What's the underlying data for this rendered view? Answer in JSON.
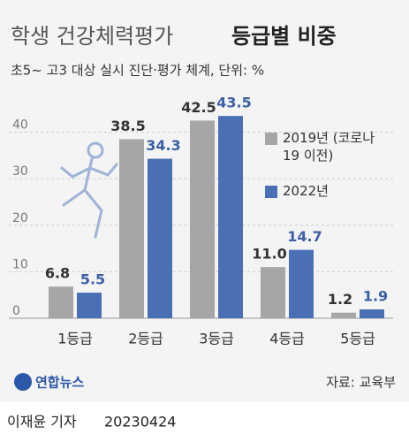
{
  "chart_data": {
    "type": "bar",
    "title": "학생 건강체력평가",
    "title_emphasis": "등급별 비중",
    "subtitle": "초5~ 고3 대상 실시 진단·평가 체계, 단위: %",
    "categories": [
      "1등급",
      "2등급",
      "3등급",
      "4등급",
      "5등급"
    ],
    "series": [
      {
        "name": "2019년 (코로나19 이전)",
        "color": "#a6a6a6",
        "values": [
          6.8,
          38.5,
          42.5,
          11.0,
          1.2
        ],
        "value_labels": [
          "6.8",
          "38.5",
          "42.5",
          "11.0",
          "1.2"
        ]
      },
      {
        "name": "2022년",
        "color": "#4a6fb5",
        "values": [
          5.5,
          34.3,
          43.5,
          14.7,
          1.9
        ]
      }
    ],
    "ylim": [
      0,
      46
    ],
    "yticks": [
      0,
      10,
      20,
      30,
      40
    ],
    "grid": true,
    "credit": "연합뉴스",
    "source": "자료: 교육부",
    "byline": "이재윤 기자",
    "date": "20230424"
  }
}
